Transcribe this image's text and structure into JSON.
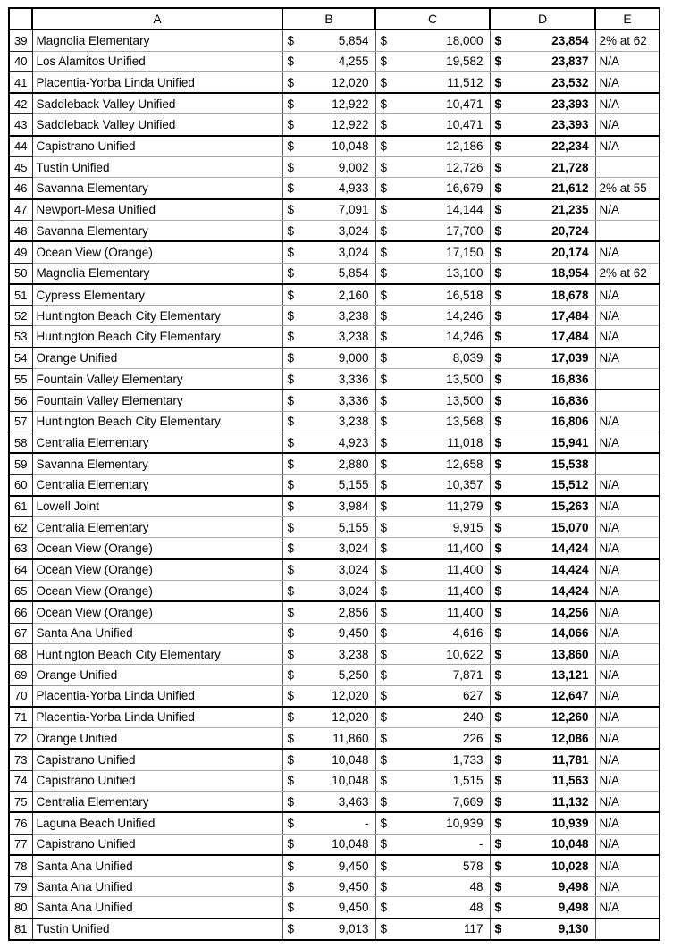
{
  "table": {
    "corner_label": "",
    "columns": {
      "a": "A",
      "b": "B",
      "c": "C",
      "d": "D",
      "e": "E"
    },
    "currency_symbol": "$",
    "rows": [
      {
        "num": "39",
        "district": "Magnolia Elementary",
        "b": "5,854",
        "c": "18,000",
        "d": "23,854",
        "note": "2% at 62",
        "thick_bottom": false
      },
      {
        "num": "40",
        "district": "Los Alamitos Unified",
        "b": "4,255",
        "c": "19,582",
        "d": "23,837",
        "note": "N/A",
        "thick_bottom": false
      },
      {
        "num": "41",
        "district": "Placentia-Yorba Linda Unified",
        "b": "12,020",
        "c": "11,512",
        "d": "23,532",
        "note": "N/A",
        "thick_bottom": true
      },
      {
        "num": "42",
        "district": "Saddleback Valley Unified",
        "b": "12,922",
        "c": "10,471",
        "d": "23,393",
        "note": "N/A",
        "thick_bottom": false
      },
      {
        "num": "43",
        "district": "Saddleback Valley Unified",
        "b": "12,922",
        "c": "10,471",
        "d": "23,393",
        "note": "N/A",
        "thick_bottom": true
      },
      {
        "num": "44",
        "district": "Capistrano Unified",
        "b": "10,048",
        "c": "12,186",
        "d": "22,234",
        "note": "N/A",
        "thick_bottom": false
      },
      {
        "num": "45",
        "district": "Tustin Unified",
        "b": "9,002",
        "c": "12,726",
        "d": "21,728",
        "note": "",
        "thick_bottom": false
      },
      {
        "num": "46",
        "district": "Savanna Elementary",
        "b": "4,933",
        "c": "16,679",
        "d": "21,612",
        "note": "2% at 55",
        "thick_bottom": true
      },
      {
        "num": "47",
        "district": "Newport-Mesa Unified",
        "b": "7,091",
        "c": "14,144",
        "d": "21,235",
        "note": "N/A",
        "thick_bottom": false
      },
      {
        "num": "48",
        "district": "Savanna Elementary",
        "b": "3,024",
        "c": "17,700",
        "d": "20,724",
        "note": "",
        "thick_bottom": true
      },
      {
        "num": "49",
        "district": "Ocean View (Orange)",
        "b": "3,024",
        "c": "17,150",
        "d": "20,174",
        "note": "N/A",
        "thick_bottom": false
      },
      {
        "num": "50",
        "district": "Magnolia Elementary",
        "b": "5,854",
        "c": "13,100",
        "d": "18,954",
        "note": "2% at 62",
        "thick_bottom": true
      },
      {
        "num": "51",
        "district": "Cypress Elementary",
        "b": "2,160",
        "c": "16,518",
        "d": "18,678",
        "note": "N/A",
        "thick_bottom": false
      },
      {
        "num": "52",
        "district": "Huntington Beach City Elementary",
        "b": "3,238",
        "c": "14,246",
        "d": "17,484",
        "note": "N/A",
        "thick_bottom": false
      },
      {
        "num": "53",
        "district": "Huntington Beach City Elementary",
        "b": "3,238",
        "c": "14,246",
        "d": "17,484",
        "note": "N/A",
        "thick_bottom": true
      },
      {
        "num": "54",
        "district": "Orange Unified",
        "b": "9,000",
        "c": "8,039",
        "d": "17,039",
        "note": "N/A",
        "thick_bottom": false
      },
      {
        "num": "55",
        "district": "Fountain Valley Elementary",
        "b": "3,336",
        "c": "13,500",
        "d": "16,836",
        "note": "",
        "thick_bottom": true
      },
      {
        "num": "56",
        "district": "Fountain Valley Elementary",
        "b": "3,336",
        "c": "13,500",
        "d": "16,836",
        "note": "",
        "thick_bottom": false
      },
      {
        "num": "57",
        "district": "Huntington Beach City Elementary",
        "b": "3,238",
        "c": "13,568",
        "d": "16,806",
        "note": "N/A",
        "thick_bottom": false
      },
      {
        "num": "58",
        "district": "Centralia Elementary",
        "b": "4,923",
        "c": "11,018",
        "d": "15,941",
        "note": "N/A",
        "thick_bottom": true
      },
      {
        "num": "59",
        "district": "Savanna Elementary",
        "b": "2,880",
        "c": "12,658",
        "d": "15,538",
        "note": "",
        "thick_bottom": false
      },
      {
        "num": "60",
        "district": "Centralia Elementary",
        "b": "5,155",
        "c": "10,357",
        "d": "15,512",
        "note": "N/A",
        "thick_bottom": true
      },
      {
        "num": "61",
        "district": "Lowell Joint",
        "b": "3,984",
        "c": "11,279",
        "d": "15,263",
        "note": "N/A",
        "thick_bottom": false
      },
      {
        "num": "62",
        "district": "Centralia Elementary",
        "b": "5,155",
        "c": "9,915",
        "d": "15,070",
        "note": "N/A",
        "thick_bottom": false
      },
      {
        "num": "63",
        "district": "Ocean View (Orange)",
        "b": "3,024",
        "c": "11,400",
        "d": "14,424",
        "note": "N/A",
        "thick_bottom": true
      },
      {
        "num": "64",
        "district": "Ocean View (Orange)",
        "b": "3,024",
        "c": "11,400",
        "d": "14,424",
        "note": "N/A",
        "thick_bottom": false
      },
      {
        "num": "65",
        "district": "Ocean View (Orange)",
        "b": "3,024",
        "c": "11,400",
        "d": "14,424",
        "note": "N/A",
        "thick_bottom": true
      },
      {
        "num": "66",
        "district": "Ocean View (Orange)",
        "b": "2,856",
        "c": "11,400",
        "d": "14,256",
        "note": "N/A",
        "thick_bottom": false
      },
      {
        "num": "67",
        "district": "Santa Ana Unified",
        "b": "9,450",
        "c": "4,616",
        "d": "14,066",
        "note": "N/A",
        "thick_bottom": false
      },
      {
        "num": "68",
        "district": "Huntington Beach City Elementary",
        "b": "3,238",
        "c": "10,622",
        "d": "13,860",
        "note": "N/A",
        "thick_bottom": false
      },
      {
        "num": "69",
        "district": "Orange Unified",
        "b": "5,250",
        "c": "7,871",
        "d": "13,121",
        "note": "N/A",
        "thick_bottom": false
      },
      {
        "num": "70",
        "district": "Placentia-Yorba Linda Unified",
        "b": "12,020",
        "c": "627",
        "d": "12,647",
        "note": "N/A",
        "thick_bottom": true
      },
      {
        "num": "71",
        "district": "Placentia-Yorba Linda Unified",
        "b": "12,020",
        "c": "240",
        "d": "12,260",
        "note": "N/A",
        "thick_bottom": false
      },
      {
        "num": "72",
        "district": "Orange Unified",
        "b": "11,860",
        "c": "226",
        "d": "12,086",
        "note": "N/A",
        "thick_bottom": true
      },
      {
        "num": "73",
        "district": "Capistrano Unified",
        "b": "10,048",
        "c": "1,733",
        "d": "11,781",
        "note": "N/A",
        "thick_bottom": false
      },
      {
        "num": "74",
        "district": "Capistrano Unified",
        "b": "10,048",
        "c": "1,515",
        "d": "11,563",
        "note": "N/A",
        "thick_bottom": false
      },
      {
        "num": "75",
        "district": "Centralia Elementary",
        "b": "3,463",
        "c": "7,669",
        "d": "11,132",
        "note": "N/A",
        "thick_bottom": true
      },
      {
        "num": "76",
        "district": "Laguna Beach Unified",
        "b": "-",
        "c": "10,939",
        "d": "10,939",
        "note": "N/A",
        "thick_bottom": false
      },
      {
        "num": "77",
        "district": "Capistrano Unified",
        "b": "10,048",
        "c": "-",
        "d": "10,048",
        "note": "N/A",
        "thick_bottom": true
      },
      {
        "num": "78",
        "district": "Santa Ana Unified",
        "b": "9,450",
        "c": "578",
        "d": "10,028",
        "note": "N/A",
        "thick_bottom": false
      },
      {
        "num": "79",
        "district": "Santa Ana Unified",
        "b": "9,450",
        "c": "48",
        "d": "9,498",
        "note": "N/A",
        "thick_bottom": false
      },
      {
        "num": "80",
        "district": "Santa Ana Unified",
        "b": "9,450",
        "c": "48",
        "d": "9,498",
        "note": "N/A",
        "thick_bottom": true
      },
      {
        "num": "81",
        "district": "Tustin Unified",
        "b": "9,013",
        "c": "117",
        "d": "9,130",
        "note": "",
        "thick_bottom": true
      }
    ]
  },
  "colors": {
    "background": "#ffffff",
    "text": "#000000",
    "grid_thin": "#a6a6a6",
    "grid_vertical": "#595959",
    "grid_thick": "#000000"
  }
}
